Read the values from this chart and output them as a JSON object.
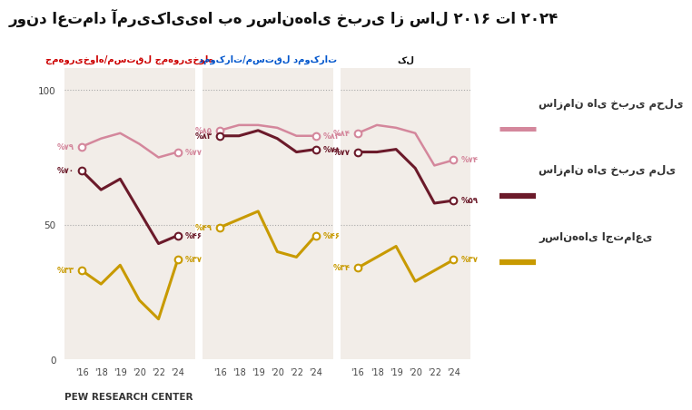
{
  "title": "روند اعتماد آمریکایی‌ها به رسانه‌های خبری از سال ۲۰۱۶ تا ۲۰۲۴",
  "subtitle_rep": "جمهوری‌خواه/مستقل جمهوری‌خواه",
  "subtitle_dem": "دموکرات/مستقل دموکرات",
  "subtitle_all": "کل",
  "legend_local": "سازمان های خبری محلی",
  "legend_national": "سازمان های خبری ملی",
  "legend_social": "رسانه‌های اجتماعی",
  "source": "PEW RESEARCH CENTER",
  "years_labels": [
    "'16",
    "'18",
    "'19",
    "'20",
    "'22",
    "'24"
  ],
  "rep_local": [
    79,
    82,
    84,
    80,
    75,
    77
  ],
  "rep_national": [
    70,
    63,
    67,
    55,
    43,
    46
  ],
  "rep_social": [
    33,
    28,
    35,
    22,
    15,
    37
  ],
  "dem_local": [
    85,
    87,
    87,
    86,
    83,
    83
  ],
  "dem_national": [
    83,
    83,
    85,
    82,
    77,
    78
  ],
  "dem_social": [
    49,
    52,
    55,
    40,
    38,
    46
  ],
  "all_local": [
    84,
    87,
    86,
    84,
    72,
    74
  ],
  "all_national": [
    77,
    77,
    78,
    71,
    58,
    59
  ],
  "all_social": [
    34,
    38,
    42,
    29,
    33,
    37
  ],
  "color_local": "#d4879c",
  "color_national": "#6b1a2a",
  "color_social": "#c89a00",
  "bg_panel": "#f2ede8",
  "bg_main": "#ffffff",
  "rep_label_start_local": "%۷۹",
  "rep_label_start_national": "%۷۰",
  "rep_label_start_social": "%۳۳",
  "rep_label_end_local": "%۷۷",
  "rep_label_end_national": "%۴۶",
  "rep_label_end_social": "%۳۷",
  "dem_label_start_local": "%۸۵",
  "dem_label_start_national": "%۸۳",
  "dem_label_start_social": "%۴۹",
  "dem_label_end_local": "%۸۳",
  "dem_label_end_national": "%۷۸",
  "dem_label_end_social": "%۴۶",
  "all_label_start_local": "%۸۴",
  "all_label_start_national": "%۷۷",
  "all_label_start_social": "%۳۴",
  "all_label_end_local": "%۷۴",
  "all_label_end_national": "%۵۹",
  "all_label_end_social": "%۳۷"
}
